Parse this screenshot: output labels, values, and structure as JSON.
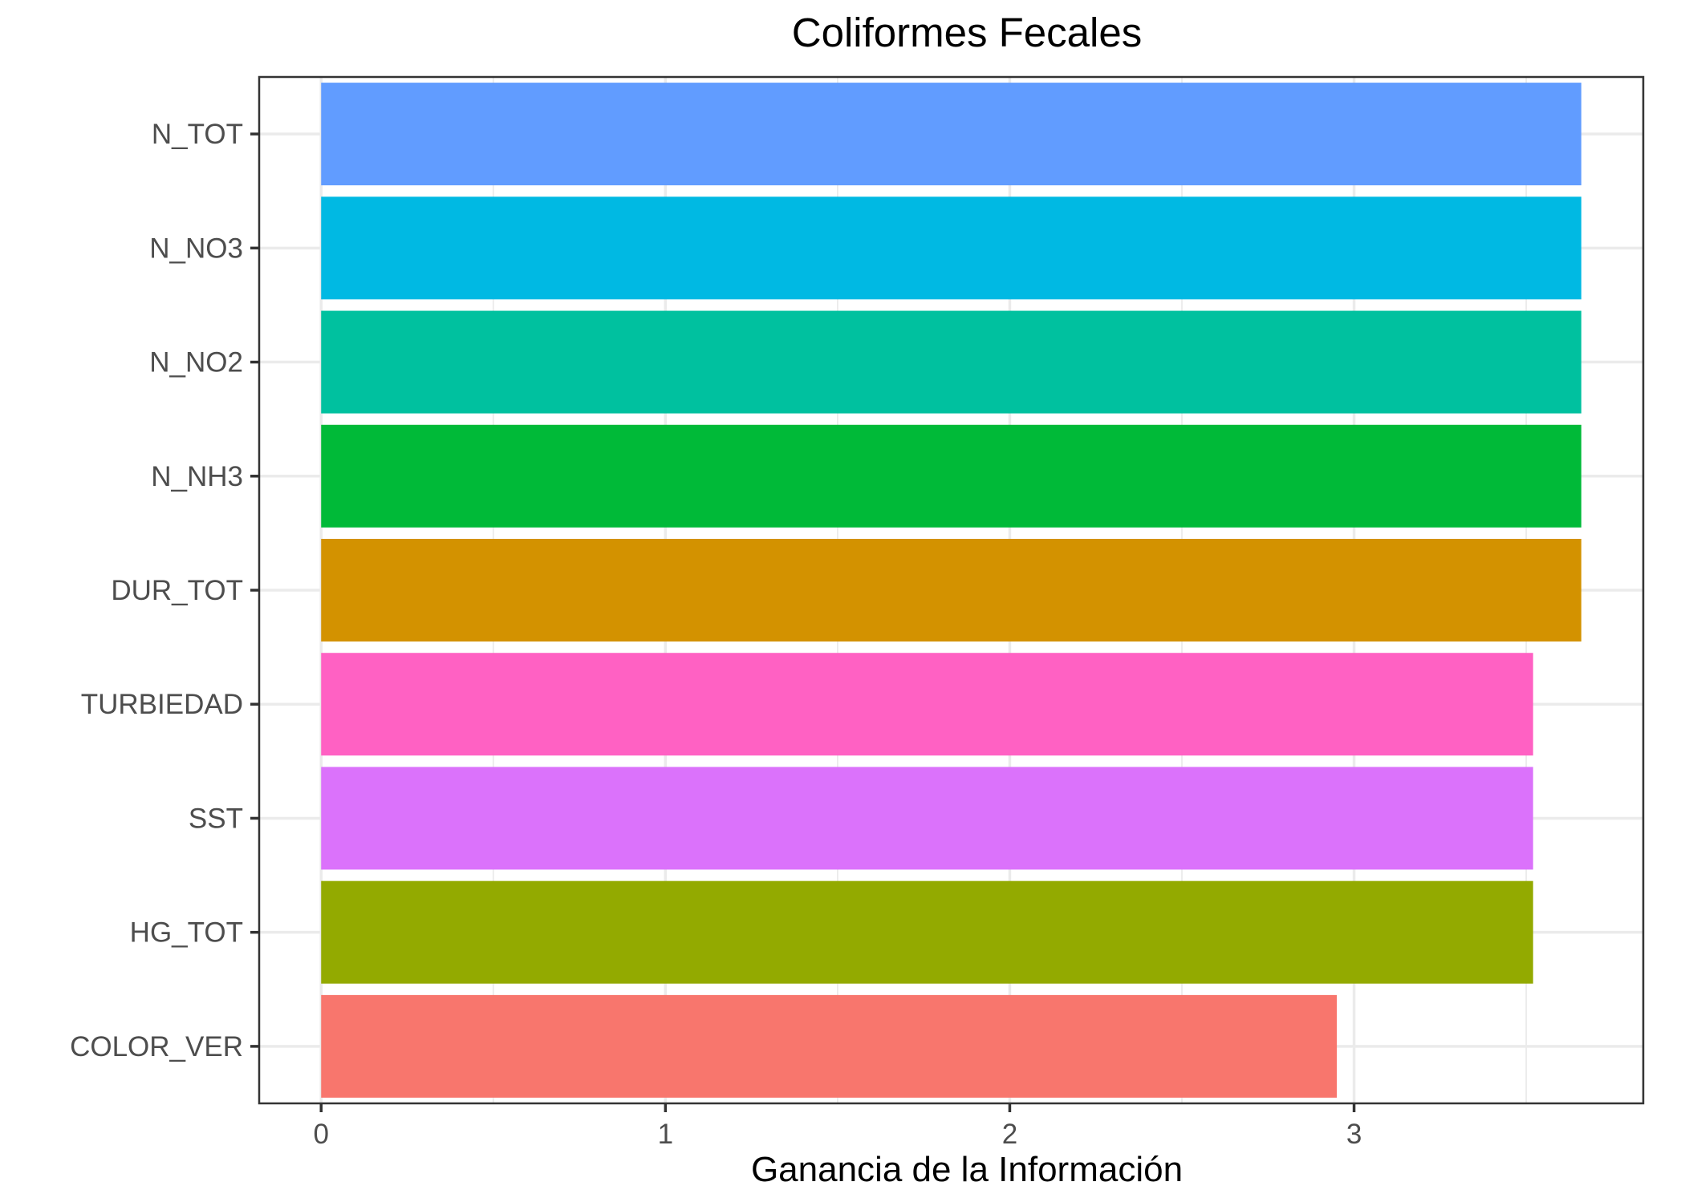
{
  "chart_data": {
    "type": "bar",
    "orientation": "horizontal",
    "title": "Coliformes Fecales",
    "xlabel": "Ganancia de la Información",
    "ylabel": "",
    "xlim": [
      -0.18,
      3.84
    ],
    "x_ticks": [
      0,
      1,
      2,
      3
    ],
    "grid": true,
    "legend": "none",
    "categories": [
      "N_TOT",
      "N_NO3",
      "N_NO2",
      "N_NH3",
      "DUR_TOT",
      "TURBIEDAD",
      "SST",
      "HG_TOT",
      "COLOR_VER"
    ],
    "values": [
      3.66,
      3.66,
      3.66,
      3.66,
      3.66,
      3.52,
      3.52,
      3.52,
      2.95
    ],
    "colors": [
      "#619CFF",
      "#00B9E3",
      "#00C19F",
      "#00BA38",
      "#D39200",
      "#FF61C3",
      "#DB72FB",
      "#93AA00",
      "#F8766D"
    ]
  }
}
